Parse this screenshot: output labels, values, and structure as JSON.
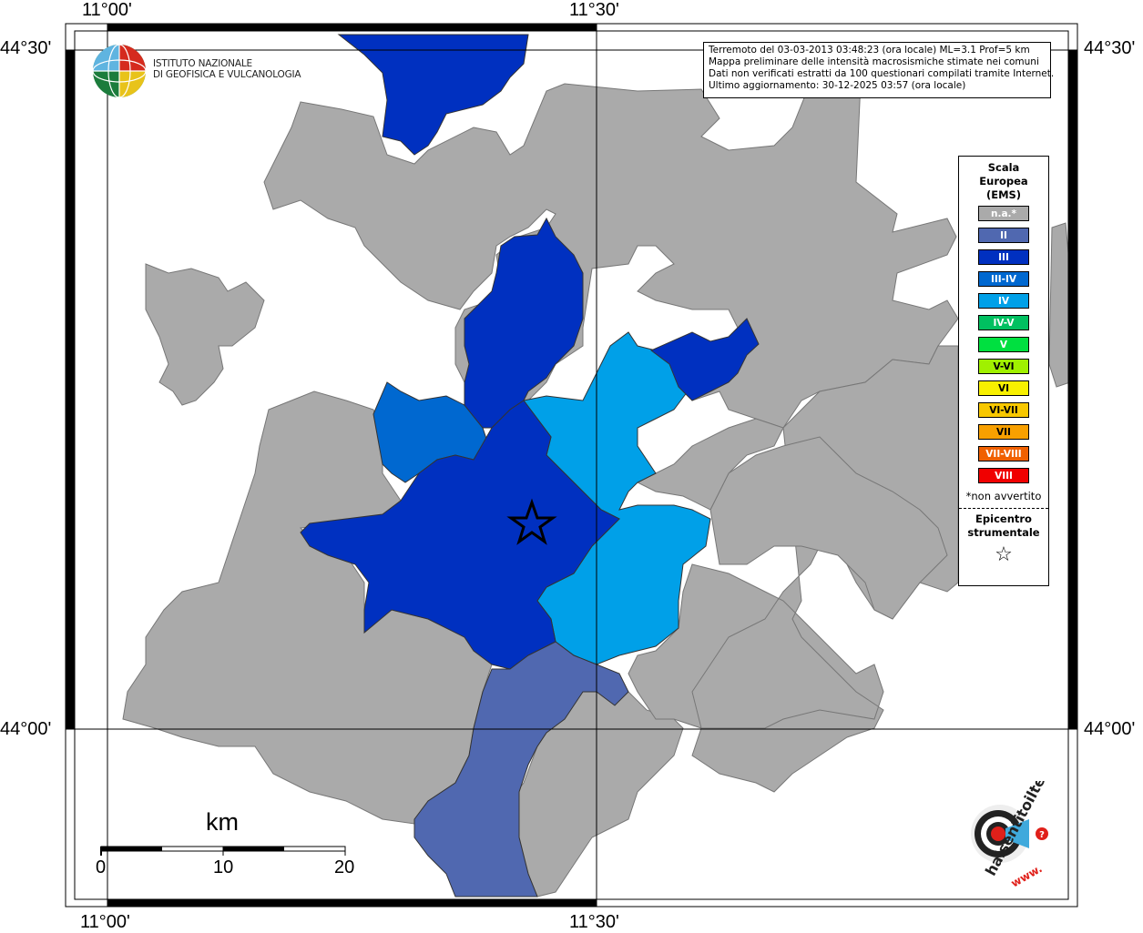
{
  "coords": {
    "top": [
      "11°00'",
      "11°30'"
    ],
    "bottom": [
      "11°00'",
      "11°30'"
    ],
    "left": [
      "44°30'",
      "44°00'"
    ],
    "right": [
      "44°30'",
      "44°00'"
    ]
  },
  "info": {
    "line1": "Terremoto del 03-03-2013 03:48:23 (ora locale) ML=3.1 Prof=5 km",
    "line2": "Mappa preliminare delle intensità macrosismiche stimate nei comuni",
    "line3": "Dati non verificati estratti da 100 questionari compilati tramite Internet.",
    "line4": "Ultimo aggiornamento: 30-12-2025 03:57 (ora locale)"
  },
  "logo": {
    "line1": "ISTITUTO NAZIONALE",
    "line2": "DI GEOFISICA E VULCANOLOGIA"
  },
  "legend": {
    "title1": "Scala",
    "title2": "Europea",
    "title3": "(EMS)",
    "items": [
      {
        "label": "n.a.*",
        "color": "#aaaaaa"
      },
      {
        "label": "II",
        "color": "#5068b0"
      },
      {
        "label": "III",
        "color": "#0030c0"
      },
      {
        "label": "III-IV",
        "color": "#0068d0"
      },
      {
        "label": "IV",
        "color": "#00a0e8"
      },
      {
        "label": "IV-V",
        "color": "#00c060"
      },
      {
        "label": "V",
        "color": "#00e040"
      },
      {
        "label": "V-VI",
        "color": "#a0f000"
      },
      {
        "label": "VI",
        "color": "#f8f000"
      },
      {
        "label": "VI-VII",
        "color": "#f8c800"
      },
      {
        "label": "VII",
        "color": "#f8a000"
      },
      {
        "label": "VII-VIII",
        "color": "#f06000"
      },
      {
        "label": "VIII",
        "color": "#f00000"
      }
    ],
    "note": "*non avvertito",
    "epi1": "Epicentro",
    "epi2": "strumentale",
    "epi_icon": "star-icon"
  },
  "scale": {
    "unit": "km",
    "labels": [
      "0",
      "10",
      "20"
    ]
  },
  "hsit": {
    "brand": "haisentitoilterremoto.it",
    "prefix": "www."
  }
}
